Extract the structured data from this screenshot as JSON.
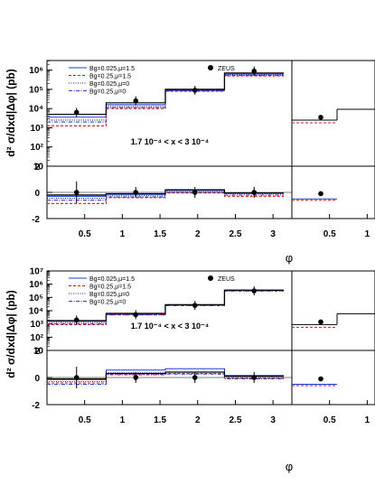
{
  "chart_data": [
    {
      "type": "line",
      "ylabel": "d² σ/dxd|Δφ| (pb)",
      "xlabel": "φ",
      "region": "1.7 10⁻⁴ < x < 3 10⁻⁴",
      "edges": [
        0.0,
        0.785,
        1.571,
        2.356,
        3.142
      ],
      "xticks": [
        "0.5",
        "1",
        "1.5",
        "2",
        "2.5",
        "3"
      ],
      "ylog": true,
      "ylim_exp": [
        1,
        6.5
      ],
      "yticks": [
        "10",
        "10²",
        "10³",
        "10⁴",
        "10⁵",
        "10⁶"
      ],
      "legend": [
        "Bg=0.025,μ=1.5",
        "Bg=0.25,μ=1.5",
        "Bg=0.025,μ=0",
        "Bg=0.25,μ=0"
      ],
      "data_label": "ZEUS",
      "series": [
        {
          "name": "Bg=0.025,μ=1.5",
          "log10": [
            3.55,
            4.2,
            4.95,
            5.8
          ]
        },
        {
          "name": "Bg=0.25,μ=1.5",
          "log10": [
            3.1,
            4.0,
            4.9,
            5.7
          ]
        },
        {
          "name": "Bg=0.025,μ=0",
          "log10": [
            3.4,
            4.1,
            4.95,
            5.75
          ]
        },
        {
          "name": "Bg=0.25,μ=0",
          "log10": [
            3.3,
            4.05,
            4.92,
            5.72
          ]
        }
      ],
      "black": [
        3.7,
        4.3,
        5.0,
        5.85
      ],
      "points": [
        3.8,
        4.4,
        4.95,
        5.95
      ],
      "ratio_ylim": [
        -2,
        2
      ],
      "ratio_yticks": [
        "-2",
        "0",
        "2"
      ],
      "ratio_series": [
        {
          "name": "Bg=0.025,μ=1.5",
          "values": [
            -0.3,
            -0.15,
            0.15,
            -0.05
          ]
        },
        {
          "name": "Bg=0.25,μ=1.5",
          "values": [
            -0.85,
            -0.4,
            -0.05,
            -0.3
          ]
        },
        {
          "name": "Bg=0.025,μ=0",
          "values": [
            -0.45,
            -0.25,
            0.05,
            -0.1
          ]
        },
        {
          "name": "Bg=0.25,μ=0",
          "values": [
            -0.6,
            -0.35,
            0.0,
            -0.2
          ]
        }
      ],
      "ratio_black": [
        -0.2,
        -0.1,
        0.2,
        -0.05
      ],
      "ratio_points": [
        0.0,
        0.0,
        0.0,
        0.0
      ]
    },
    {
      "type": "line",
      "ylabel": "d² σ/dxd|Δφ| (pb)",
      "xlabel": "φ",
      "region": "1.7 10⁻⁴ < x < 3 10⁻⁴",
      "edges": [
        0.0,
        0.785,
        1.571,
        2.356,
        3.142
      ],
      "xticks": [
        "0.5",
        "1",
        "1.5",
        "2",
        "2.5",
        "3"
      ],
      "ylog": true,
      "ylim_exp": [
        1,
        7
      ],
      "yticks": [
        "10",
        "10²",
        "10³",
        "10⁴",
        "10⁵",
        "10⁶",
        "10⁷"
      ],
      "legend": [
        "Bg=0.025,μ=1.5",
        "Bg=0.25,μ=1.5",
        "Bg=0.025,μ=0",
        "Bg=0.25,μ=0"
      ],
      "data_label": "ZEUS",
      "series": [
        {
          "name": "Bg=0.025,μ=1.5",
          "log10": [
            3.2,
            3.75,
            4.45,
            5.55
          ]
        },
        {
          "name": "Bg=0.25,μ=1.5",
          "log10": [
            2.95,
            3.7,
            4.4,
            5.5
          ]
        },
        {
          "name": "Bg=0.025,μ=0",
          "log10": [
            3.1,
            3.72,
            4.42,
            5.52
          ]
        },
        {
          "name": "Bg=0.25,μ=0",
          "log10": [
            3.0,
            3.68,
            4.38,
            5.48
          ]
        }
      ],
      "black": [
        3.25,
        3.8,
        4.45,
        5.55
      ],
      "points": [
        3.3,
        3.7,
        4.4,
        5.5
      ],
      "ratio_ylim": [
        -2,
        2
      ],
      "ratio_yticks": [
        "-2",
        "0",
        "2"
      ],
      "ratio_series": [
        {
          "name": "Bg=0.025,μ=1.5",
          "values": [
            -0.15,
            0.55,
            0.65,
            0.15
          ]
        },
        {
          "name": "Bg=0.25,μ=1.5",
          "values": [
            -0.4,
            0.25,
            0.3,
            -0.05
          ]
        },
        {
          "name": "Bg=0.025,μ=0",
          "values": [
            -0.3,
            0.35,
            0.4,
            0.0
          ]
        },
        {
          "name": "Bg=0.25,μ=0",
          "values": [
            -0.5,
            0.2,
            0.25,
            -0.1
          ]
        }
      ],
      "ratio_black": [
        -0.1,
        0.3,
        0.4,
        0.1
      ],
      "ratio_points": [
        0.0,
        0.0,
        0.0,
        0.0
      ]
    }
  ]
}
